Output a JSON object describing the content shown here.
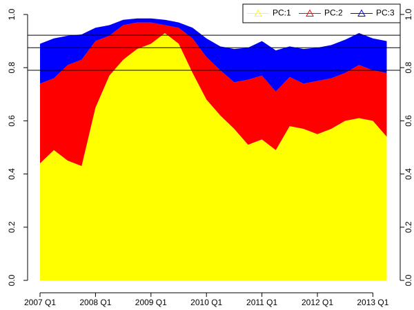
{
  "chart_data": {
    "type": "stacked_area",
    "categories": [
      "2007 Q1",
      null,
      null,
      null,
      "2008 Q1",
      null,
      null,
      null,
      "2009 Q1",
      null,
      null,
      null,
      "2010 Q1",
      null,
      null,
      null,
      "2011 Q1",
      null,
      null,
      null,
      "2012 Q1",
      null,
      null,
      null,
      "2013 Q1",
      null
    ],
    "series": [
      {
        "name": "PC:1",
        "color": "#ffff00",
        "values": [
          0.44,
          0.49,
          0.45,
          0.43,
          0.65,
          0.77,
          0.83,
          0.87,
          0.89,
          0.93,
          0.89,
          0.78,
          0.68,
          0.62,
          0.57,
          0.51,
          0.53,
          0.49,
          0.58,
          0.57,
          0.55,
          0.57,
          0.6,
          0.61,
          0.6,
          0.54
        ]
      },
      {
        "name": "PC:2",
        "color": "#ff0000",
        "values": [
          0.3,
          0.27,
          0.36,
          0.4,
          0.25,
          0.15,
          0.13,
          0.1,
          0.08,
          0.03,
          0.06,
          0.13,
          0.16,
          0.17,
          0.175,
          0.245,
          0.24,
          0.22,
          0.185,
          0.17,
          0.2,
          0.19,
          0.18,
          0.2,
          0.19,
          0.24
        ]
      },
      {
        "name": "PC:3",
        "color": "#0000ff",
        "values": [
          0.15,
          0.15,
          0.11,
          0.095,
          0.05,
          0.04,
          0.02,
          0.015,
          0.015,
          0.02,
          0.02,
          0.04,
          0.07,
          0.09,
          0.125,
          0.12,
          0.13,
          0.155,
          0.115,
          0.13,
          0.125,
          0.125,
          0.125,
          0.12,
          0.12,
          0.12
        ]
      }
    ],
    "ylim": [
      0,
      1
    ],
    "yticks": [
      {
        "value": 0,
        "label": "0.0"
      },
      0.2,
      0.4,
      0.6,
      0.8,
      {
        "value": 1,
        "label": "1.0"
      }
    ],
    "reference_lines": [
      0.79,
      0.875,
      0.922
    ],
    "legend": "top-right"
  }
}
